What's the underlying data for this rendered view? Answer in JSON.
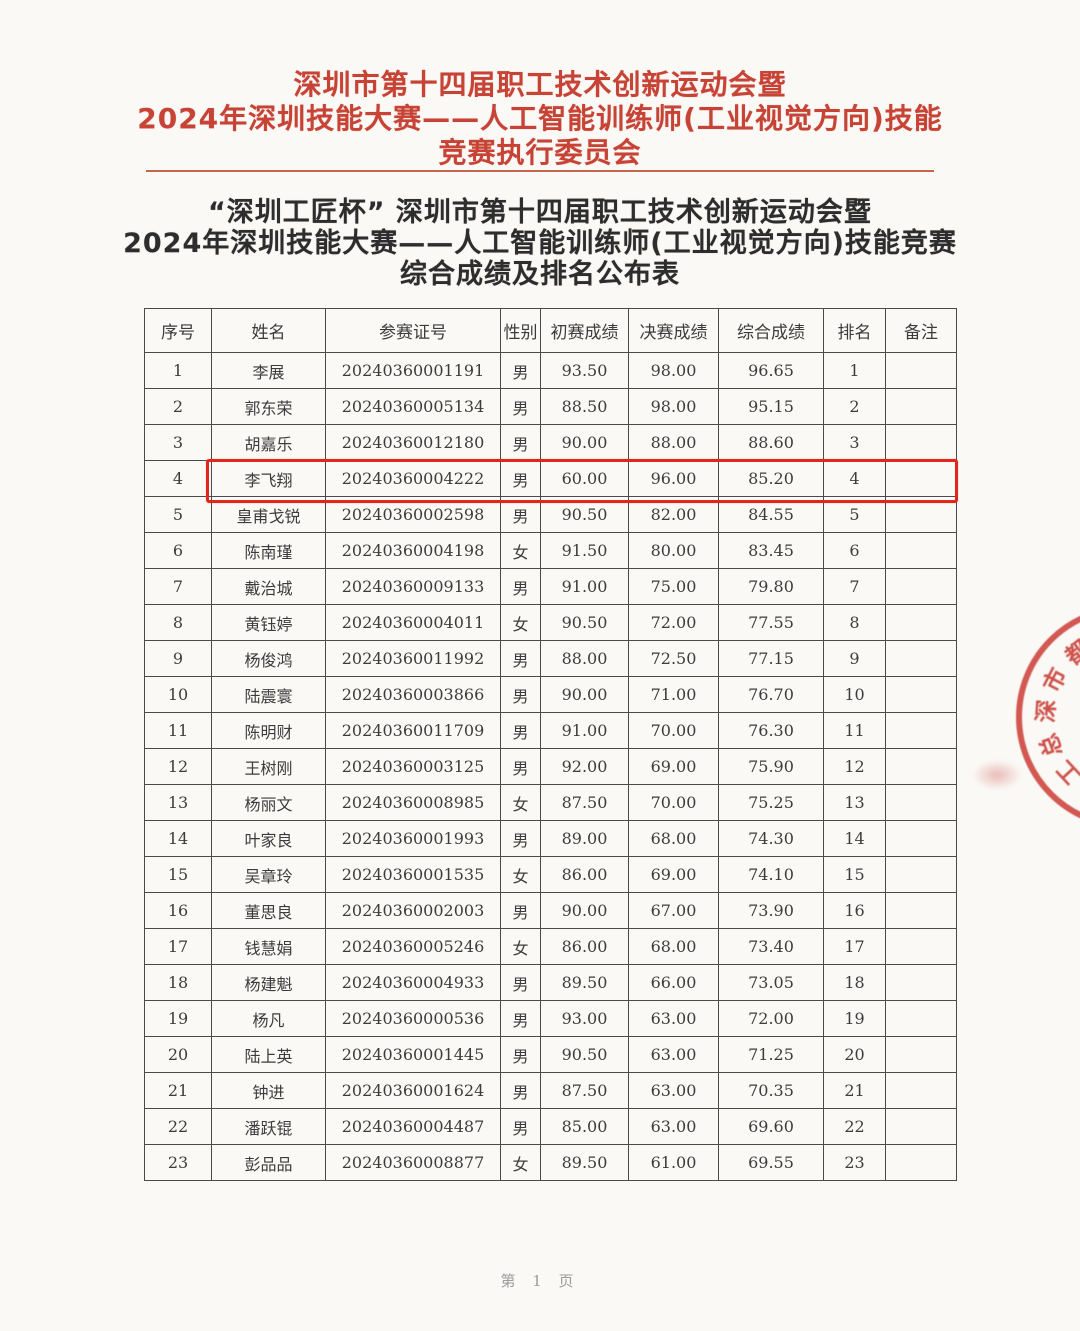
{
  "header": {
    "lines": [
      "深圳市第十四届职工技术创新运动会暨",
      "2024年深圳技能大赛——人工智能训练师(工业视觉方向)技能",
      "竞赛执行委员会"
    ]
  },
  "title": {
    "lines": [
      "“深圳工匠杯” 深圳市第十四届职工技术创新运动会暨",
      "2024年深圳技能大赛——人工智能训练师(工业视觉方向)技能竞赛",
      "综合成绩及排名公布表"
    ]
  },
  "table": {
    "columns": [
      "序号",
      "姓名",
      "参赛证号",
      "性别",
      "初赛成绩",
      "决赛成绩",
      "综合成绩",
      "排名",
      "备注"
    ],
    "rows": [
      [
        "1",
        "李展",
        "20240360001191",
        "男",
        "93.50",
        "98.00",
        "96.65",
        "1",
        ""
      ],
      [
        "2",
        "郭东荣",
        "20240360005134",
        "男",
        "88.50",
        "98.00",
        "95.15",
        "2",
        ""
      ],
      [
        "3",
        "胡嘉乐",
        "20240360012180",
        "男",
        "90.00",
        "88.00",
        "88.60",
        "3",
        ""
      ],
      [
        "4",
        "李飞翔",
        "20240360004222",
        "男",
        "60.00",
        "96.00",
        "85.20",
        "4",
        ""
      ],
      [
        "5",
        "皇甫戈锐",
        "20240360002598",
        "男",
        "90.50",
        "82.00",
        "84.55",
        "5",
        ""
      ],
      [
        "6",
        "陈南瑾",
        "20240360004198",
        "女",
        "91.50",
        "80.00",
        "83.45",
        "6",
        ""
      ],
      [
        "7",
        "戴治城",
        "20240360009133",
        "男",
        "91.00",
        "75.00",
        "79.80",
        "7",
        ""
      ],
      [
        "8",
        "黄钰婷",
        "20240360004011",
        "女",
        "90.50",
        "72.00",
        "77.55",
        "8",
        ""
      ],
      [
        "9",
        "杨俊鸿",
        "20240360011992",
        "男",
        "88.00",
        "72.50",
        "77.15",
        "9",
        ""
      ],
      [
        "10",
        "陆震寰",
        "20240360003866",
        "男",
        "90.00",
        "71.00",
        "76.70",
        "10",
        ""
      ],
      [
        "11",
        "陈明财",
        "20240360011709",
        "男",
        "91.00",
        "70.00",
        "76.30",
        "11",
        ""
      ],
      [
        "12",
        "王树刚",
        "20240360003125",
        "男",
        "92.00",
        "69.00",
        "75.90",
        "12",
        ""
      ],
      [
        "13",
        "杨丽文",
        "20240360008985",
        "女",
        "87.50",
        "70.00",
        "75.25",
        "13",
        ""
      ],
      [
        "14",
        "叶家良",
        "20240360001993",
        "男",
        "89.00",
        "68.00",
        "74.30",
        "14",
        ""
      ],
      [
        "15",
        "吴章玲",
        "20240360001535",
        "女",
        "86.00",
        "69.00",
        "74.10",
        "15",
        ""
      ],
      [
        "16",
        "董思良",
        "20240360002003",
        "男",
        "90.00",
        "67.00",
        "73.90",
        "16",
        ""
      ],
      [
        "17",
        "钱慧娟",
        "20240360005246",
        "女",
        "86.00",
        "68.00",
        "73.40",
        "17",
        ""
      ],
      [
        "18",
        "杨建魁",
        "20240360004933",
        "男",
        "89.50",
        "66.00",
        "73.05",
        "18",
        ""
      ],
      [
        "19",
        "杨凡",
        "20240360000536",
        "男",
        "93.00",
        "63.00",
        "72.00",
        "19",
        ""
      ],
      [
        "20",
        "陆上英",
        "20240360001445",
        "男",
        "90.50",
        "63.00",
        "71.25",
        "20",
        ""
      ],
      [
        "21",
        "钟进",
        "20240360001624",
        "男",
        "87.50",
        "63.00",
        "70.35",
        "21",
        ""
      ],
      [
        "22",
        "潘跃锟",
        "20240360004487",
        "男",
        "85.00",
        "63.00",
        "69.60",
        "22",
        ""
      ],
      [
        "23",
        "彭品品",
        "20240360008877",
        "女",
        "89.50",
        "61.00",
        "69.55",
        "23",
        ""
      ]
    ],
    "highlighted_rank": "4"
  },
  "stamp": {
    "legible_text": "深圳市",
    "arc_chars": [
      "都",
      "市",
      "深",
      "总",
      "工"
    ]
  },
  "footer": {
    "page_label": "第 1 页"
  },
  "colors": {
    "title_red": "#c74335",
    "highlight_red": "#e3261c",
    "stamp_red": "#c8302a",
    "title_black": "#2d2d2d"
  }
}
